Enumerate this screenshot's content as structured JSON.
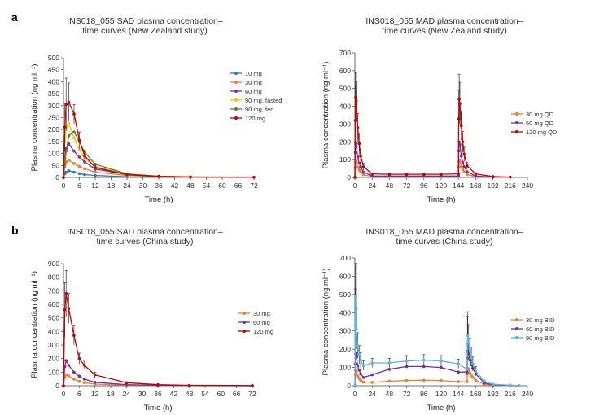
{
  "panel_labels": [
    "a",
    "b"
  ],
  "chart_data": [
    {
      "type": "line",
      "title_lines": [
        "INS018_055 SAD plasma concentration–",
        "time curves (New Zealand study)"
      ],
      "xlabel": "Time (h)",
      "ylabel": "Plasma concentration (ng ml⁻¹)",
      "xlim": [
        0,
        72
      ],
      "ylim": [
        0,
        500
      ],
      "xticks": [
        0,
        6,
        12,
        18,
        24,
        30,
        36,
        42,
        48,
        54,
        60,
        66,
        72
      ],
      "yticks": [
        0,
        50,
        100,
        150,
        200,
        250,
        300,
        350,
        400,
        450,
        500
      ],
      "legend_position": "right",
      "series": [
        {
          "name": "10 mg",
          "color": "#2e75b6",
          "x": [
            0,
            0.5,
            1,
            2,
            4,
            6,
            8,
            12,
            24
          ],
          "y": [
            0,
            15,
            22,
            28,
            22,
            16,
            12,
            8,
            3
          ]
        },
        {
          "name": "30 mg",
          "color": "#ed7d31",
          "x": [
            0,
            0.5,
            1,
            2,
            4,
            6,
            8,
            12,
            24,
            36,
            48
          ],
          "y": [
            0,
            45,
            65,
            72,
            58,
            46,
            36,
            22,
            8,
            3,
            1
          ]
        },
        {
          "name": "60 mg",
          "color": "#7030a0",
          "x": [
            0,
            0.5,
            1,
            2,
            4,
            6,
            8,
            12,
            24,
            36,
            48
          ],
          "y": [
            0,
            80,
            120,
            140,
            110,
            85,
            65,
            35,
            12,
            4,
            2
          ]
        },
        {
          "name": "90 mg, fasted",
          "color": "#ffc000",
          "x": [
            0,
            0.5,
            1,
            2,
            4,
            6,
            8,
            12,
            24,
            36,
            48
          ],
          "y": [
            0,
            150,
            210,
            225,
            165,
            115,
            80,
            45,
            15,
            5,
            2
          ]
        },
        {
          "name": "90 mg, fed",
          "color": "#548235",
          "x": [
            0,
            0.5,
            1,
            2,
            4,
            6,
            8,
            12,
            24,
            36,
            48
          ],
          "y": [
            0,
            55,
            110,
            175,
            190,
            150,
            105,
            55,
            15,
            5,
            2
          ]
        },
        {
          "name": "120 mg",
          "color": "#c00000",
          "x": [
            0,
            0.5,
            1,
            2,
            4,
            6,
            8,
            12,
            24,
            36,
            48,
            72
          ],
          "y": [
            0,
            210,
            305,
            315,
            265,
            155,
            90,
            42,
            12,
            4,
            2,
            1
          ],
          "err": [
            0,
            100,
            110,
            80,
            40,
            35,
            25,
            15,
            6,
            2,
            1,
            0
          ]
        }
      ]
    },
    {
      "type": "line",
      "title_lines": [
        "INS018_055 MAD plasma concentration–",
        "time curves (New Zealand study)"
      ],
      "xlabel": "Time (h)",
      "ylabel": "Plasma concentration (ng ml⁻¹)",
      "xlim": [
        0,
        240
      ],
      "ylim": [
        0,
        700
      ],
      "xticks": [
        0,
        24,
        48,
        72,
        96,
        120,
        144,
        168,
        192,
        216,
        240
      ],
      "yticks": [
        0,
        100,
        200,
        300,
        400,
        500,
        600,
        700
      ],
      "legend_position": "right",
      "series": [
        {
          "name": "30 mg QD",
          "color": "#ed7d31",
          "x": [
            0,
            0.5,
            1,
            2,
            4,
            6,
            8,
            12,
            24,
            48,
            72,
            96,
            120,
            144,
            144.5,
            145,
            146,
            148,
            150,
            152,
            156,
            168,
            192
          ],
          "y": [
            0,
            55,
            85,
            90,
            60,
            42,
            30,
            15,
            5,
            5,
            5,
            5,
            5,
            5,
            60,
            90,
            95,
            62,
            45,
            32,
            16,
            5,
            1
          ]
        },
        {
          "name": "60 mg QD",
          "color": "#7030a0",
          "x": [
            0,
            0.5,
            1,
            2,
            4,
            6,
            8,
            12,
            24,
            48,
            72,
            96,
            120,
            144,
            144.5,
            145,
            146,
            148,
            150,
            152,
            156,
            168,
            192
          ],
          "y": [
            0,
            140,
            195,
            175,
            115,
            80,
            58,
            30,
            8,
            8,
            8,
            8,
            8,
            8,
            150,
            200,
            185,
            120,
            85,
            60,
            32,
            8,
            2
          ]
        },
        {
          "name": "120 mg QD",
          "color": "#c00000",
          "x": [
            0,
            0.5,
            1,
            2,
            4,
            6,
            8,
            12,
            24,
            48,
            72,
            96,
            120,
            144,
            144.5,
            145,
            146,
            148,
            150,
            152,
            156,
            168,
            192,
            216
          ],
          "y": [
            0,
            320,
            450,
            430,
            280,
            190,
            120,
            60,
            20,
            18,
            18,
            18,
            18,
            20,
            330,
            440,
            415,
            290,
            200,
            130,
            65,
            20,
            5,
            2
          ],
          "err": [
            0,
            200,
            140,
            110,
            80,
            60,
            40,
            20,
            6,
            5,
            5,
            5,
            5,
            6,
            160,
            140,
            120,
            80,
            60,
            40,
            20,
            6,
            2,
            0
          ]
        }
      ]
    },
    {
      "type": "line",
      "title_lines": [
        "INS018_055 SAD plasma concentration–",
        "time curves (China study)"
      ],
      "xlabel": "Time (h)",
      "ylabel": "Plasma concentration (ng ml⁻¹)",
      "xlim": [
        0,
        72
      ],
      "ylim": [
        0,
        900
      ],
      "xticks": [
        0,
        6,
        12,
        18,
        24,
        30,
        36,
        42,
        48,
        54,
        60,
        66,
        72
      ],
      "yticks": [
        0,
        100,
        200,
        300,
        400,
        500,
        600,
        700,
        800,
        900
      ],
      "legend_position": "right",
      "series": [
        {
          "name": "30 mg",
          "color": "#ed7d31",
          "x": [
            0,
            0.5,
            1,
            2,
            4,
            6,
            8,
            12,
            24,
            36,
            48,
            72
          ],
          "y": [
            0,
            60,
            80,
            72,
            48,
            32,
            22,
            12,
            4,
            2,
            1,
            0
          ]
        },
        {
          "name": "60 mg",
          "color": "#7030a0",
          "x": [
            0,
            0.5,
            1,
            2,
            4,
            6,
            8,
            12,
            24,
            36,
            48,
            72
          ],
          "y": [
            0,
            140,
            185,
            150,
            100,
            70,
            48,
            25,
            8,
            3,
            1,
            0
          ]
        },
        {
          "name": "120 mg",
          "color": "#c00000",
          "x": [
            0,
            0.5,
            1,
            2,
            4,
            6,
            8,
            12,
            24,
            36,
            48,
            72
          ],
          "y": [
            0,
            560,
            680,
            570,
            370,
            200,
            150,
            80,
            22,
            8,
            3,
            1
          ],
          "err": [
            0,
            200,
            170,
            110,
            70,
            40,
            30,
            20,
            6,
            2,
            1,
            0
          ]
        }
      ]
    },
    {
      "type": "line",
      "title_lines": [
        "INS018_055 MAD plasma concentration–",
        "time curves (China study)"
      ],
      "xlabel": "Time (h)",
      "ylabel": "Plasma concentration (ng ml⁻¹)",
      "xlim": [
        0,
        240
      ],
      "ylim": [
        0,
        700
      ],
      "xticks": [
        0,
        24,
        48,
        72,
        96,
        120,
        144,
        168,
        192,
        216,
        240
      ],
      "yticks": [
        0,
        100,
        200,
        300,
        400,
        500,
        600,
        700
      ],
      "legend_position": "right",
      "series": [
        {
          "name": "30 mg BID",
          "color": "#ed7d31",
          "x": [
            0,
            0.5,
            1,
            2,
            4,
            6,
            8,
            12,
            24,
            48,
            72,
            96,
            120,
            144,
            156,
            156.5,
            157,
            158,
            160,
            162,
            164,
            168,
            180,
            192,
            216,
            228
          ],
          "y": [
            0,
            60,
            85,
            75,
            52,
            40,
            30,
            20,
            18,
            25,
            28,
            30,
            28,
            22,
            22,
            65,
            95,
            90,
            70,
            55,
            45,
            30,
            8,
            3,
            1,
            0
          ]
        },
        {
          "name": "60 mg BID",
          "color": "#7030a0",
          "x": [
            0,
            0.5,
            1,
            2,
            4,
            6,
            8,
            12,
            24,
            48,
            72,
            96,
            120,
            144,
            156,
            156.5,
            157,
            158,
            160,
            162,
            164,
            168,
            180,
            192,
            216,
            228
          ],
          "y": [
            0,
            120,
            175,
            160,
            110,
            85,
            65,
            45,
            60,
            90,
            105,
            105,
            100,
            75,
            75,
            150,
            190,
            175,
            140,
            115,
            95,
            65,
            15,
            5,
            2,
            0
          ]
        },
        {
          "name": "90 mg BID",
          "color": "#5bb5e5",
          "x": [
            0,
            0.5,
            1,
            2,
            4,
            6,
            8,
            12,
            24,
            48,
            72,
            96,
            120,
            144,
            156,
            156.5,
            157,
            158,
            160,
            162,
            164,
            168,
            180,
            192,
            216,
            228
          ],
          "y": [
            0,
            330,
            490,
            310,
            220,
            170,
            140,
            110,
            125,
            125,
            135,
            140,
            135,
            120,
            90,
            230,
            275,
            255,
            200,
            160,
            120,
            80,
            25,
            8,
            3,
            1
          ],
          "err": [
            0,
            200,
            180,
            110,
            70,
            50,
            40,
            25,
            25,
            25,
            30,
            30,
            30,
            25,
            30,
            150,
            130,
            80,
            60,
            50,
            40,
            25,
            6,
            2,
            1,
            0
          ]
        }
      ]
    }
  ]
}
